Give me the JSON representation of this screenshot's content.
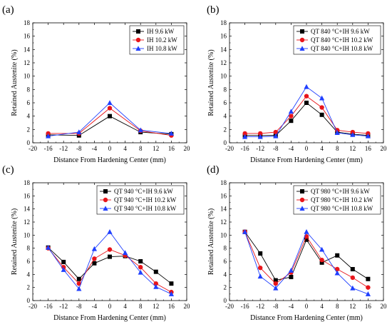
{
  "colors": {
    "black": "#000000",
    "red": "#e8151b",
    "blue": "#1f3fff"
  },
  "chart_data": [
    {
      "type": "line",
      "panel_label": "(a)",
      "xlabel": "Distance From Hardening Center (mm)",
      "ylabel": "Retained Austenite (%)",
      "xlim": [
        -20,
        20
      ],
      "ylim": [
        0,
        18
      ],
      "xticks": [
        -20,
        -16,
        -12,
        -8,
        -4,
        0,
        4,
        8,
        12,
        16,
        20
      ],
      "yticks": [
        0,
        2,
        4,
        6,
        8,
        10,
        12,
        14,
        16,
        18
      ],
      "grid": false,
      "legend_position": "top-right",
      "series": [
        {
          "name": "IH 9.6 kW",
          "marker": "square",
          "color": "#000000",
          "x": [
            -16,
            -8,
            0,
            8,
            16
          ],
          "y": [
            1.2,
            1.1,
            4.0,
            1.6,
            1.3
          ]
        },
        {
          "name": "IH 10.2 kW",
          "marker": "circle",
          "color": "#e8151b",
          "x": [
            -16,
            -8,
            0,
            8,
            16
          ],
          "y": [
            1.4,
            1.4,
            5.2,
            1.8,
            1.1
          ]
        },
        {
          "name": "IH 10.8 kW",
          "marker": "triangle",
          "color": "#1f3fff",
          "x": [
            -16,
            -8,
            0,
            8,
            16
          ],
          "y": [
            1.0,
            1.6,
            6.0,
            1.9,
            1.4
          ]
        }
      ]
    },
    {
      "type": "line",
      "panel_label": "(b)",
      "xlabel": "Distance From Hardening Center (mm)",
      "ylabel": "Retained Austenite (%)",
      "xlim": [
        -20,
        20
      ],
      "ylim": [
        0,
        18
      ],
      "xticks": [
        -20,
        -16,
        -12,
        -8,
        -4,
        0,
        4,
        8,
        12,
        16,
        20
      ],
      "yticks": [
        0,
        2,
        4,
        6,
        8,
        10,
        12,
        14,
        16,
        18
      ],
      "grid": false,
      "legend_position": "top-right",
      "series": [
        {
          "name": "QT 840 °C+IH 9.6 kW",
          "marker": "square",
          "color": "#000000",
          "x": [
            -16,
            -12,
            -8,
            -4,
            0,
            4,
            8,
            12,
            16
          ],
          "y": [
            1.1,
            1.1,
            1.1,
            3.3,
            6.0,
            4.2,
            1.6,
            1.3,
            1.1
          ]
        },
        {
          "name": "QT 840 °C+IH 10.2 kW",
          "marker": "circle",
          "color": "#e8151b",
          "x": [
            -16,
            -12,
            -8,
            -4,
            0,
            4,
            8,
            12,
            16
          ],
          "y": [
            1.4,
            1.4,
            1.6,
            4.0,
            7.0,
            5.3,
            1.9,
            1.6,
            1.4
          ]
        },
        {
          "name": "QT 840 °C+IH 10.8 kW",
          "marker": "triangle",
          "color": "#1f3fff",
          "x": [
            -16,
            -12,
            -8,
            -4,
            0,
            4,
            8,
            12,
            16
          ],
          "y": [
            0.9,
            0.9,
            1.0,
            4.7,
            8.4,
            6.7,
            1.5,
            1.2,
            1.0
          ]
        }
      ]
    },
    {
      "type": "line",
      "panel_label": "(c)",
      "xlabel": "Distance From Hardening Center (mm)",
      "ylabel": "Retained Austenite (%)",
      "xlim": [
        -20,
        20
      ],
      "ylim": [
        0,
        18
      ],
      "xticks": [
        -20,
        -16,
        -12,
        -8,
        -4,
        0,
        4,
        8,
        12,
        16,
        20
      ],
      "yticks": [
        0,
        2,
        4,
        6,
        8,
        10,
        12,
        14,
        16,
        18
      ],
      "grid": false,
      "legend_position": "top-right",
      "series": [
        {
          "name": "QT 940 °C+IH 9.6 kW",
          "marker": "square",
          "color": "#000000",
          "x": [
            -16,
            -12,
            -8,
            -4,
            0,
            4,
            8,
            12,
            16
          ],
          "y": [
            8.1,
            5.9,
            3.3,
            5.7,
            6.7,
            6.8,
            6.0,
            4.4,
            2.6
          ]
        },
        {
          "name": "QT 940 °C+IH 10.2 kW",
          "marker": "circle",
          "color": "#e8151b",
          "x": [
            -16,
            -12,
            -8,
            -4,
            0,
            4,
            8,
            12,
            16
          ],
          "y": [
            8.0,
            5.1,
            2.6,
            6.4,
            7.8,
            6.9,
            5.1,
            2.6,
            1.3
          ]
        },
        {
          "name": "QT 940 °C+IH 10.8 kW",
          "marker": "triangle",
          "color": "#1f3fff",
          "x": [
            -16,
            -12,
            -8,
            -4,
            0,
            4,
            8,
            12,
            16
          ],
          "y": [
            8.1,
            4.7,
            1.8,
            7.9,
            10.5,
            7.3,
            4.3,
            2.1,
            1.0
          ]
        }
      ]
    },
    {
      "type": "line",
      "panel_label": "(d)",
      "xlabel": "Distance From Hardening Center (mm)",
      "ylabel": "Retained Austenite (%)",
      "xlim": [
        -20,
        20
      ],
      "ylim": [
        0,
        18
      ],
      "xticks": [
        -20,
        -16,
        -12,
        -8,
        -4,
        0,
        4,
        8,
        12,
        16,
        20
      ],
      "yticks": [
        0,
        2,
        4,
        6,
        8,
        10,
        12,
        14,
        16,
        18
      ],
      "grid": false,
      "legend_position": "top-right",
      "series": [
        {
          "name": "QT 980 °C+IH 9.6 kW",
          "marker": "square",
          "color": "#000000",
          "x": [
            -16,
            -12,
            -8,
            -4,
            0,
            4,
            8,
            12,
            16
          ],
          "y": [
            10.5,
            7.2,
            3.1,
            3.6,
            9.3,
            5.8,
            6.9,
            4.8,
            3.3
          ]
        },
        {
          "name": "QT 980 °C+IH 10.2 kW",
          "marker": "circle",
          "color": "#e8151b",
          "x": [
            -16,
            -12,
            -8,
            -4,
            0,
            4,
            8,
            12,
            16
          ],
          "y": [
            10.5,
            5.0,
            2.6,
            4.3,
            9.8,
            6.2,
            4.8,
            3.5,
            2.0
          ]
        },
        {
          "name": "QT 980 °C+IH 10.8 kW",
          "marker": "triangle",
          "color": "#1f3fff",
          "x": [
            -16,
            -12,
            -8,
            -4,
            0,
            4,
            8,
            12,
            16
          ],
          "y": [
            10.5,
            3.7,
            1.9,
            4.6,
            10.5,
            7.8,
            4.2,
            1.9,
            1.0
          ]
        }
      ]
    }
  ]
}
